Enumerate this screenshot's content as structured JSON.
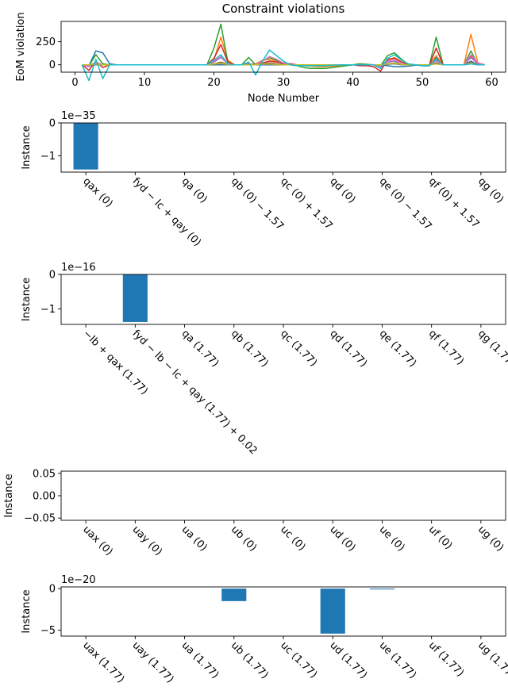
{
  "chart_data": [
    {
      "type": "line",
      "title": "Constraint violations",
      "xlabel": "Node Number",
      "ylabel": "EoM violation",
      "xlim": [
        -2,
        62
      ],
      "ylim": [
        -80,
        470
      ],
      "xticks": [
        0,
        10,
        20,
        30,
        40,
        50,
        60
      ],
      "xtick_labels": [
        "0",
        "10",
        "20",
        "30",
        "40",
        "50",
        "60"
      ],
      "yticks": [
        0,
        250
      ],
      "ytick_labels": [
        "0",
        "250"
      ],
      "x": [
        1,
        2,
        3,
        4,
        5,
        6,
        7,
        8,
        9,
        10,
        11,
        12,
        13,
        14,
        15,
        16,
        17,
        18,
        19,
        20,
        21,
        22,
        23,
        24,
        25,
        26,
        27,
        28,
        29,
        30,
        31,
        32,
        33,
        34,
        35,
        36,
        37,
        38,
        39,
        40,
        41,
        42,
        43,
        44,
        45,
        46,
        47,
        48,
        49,
        50,
        51,
        52,
        53,
        54,
        55,
        56,
        57,
        58,
        59
      ],
      "series": [
        {
          "color": "#1f77b4",
          "values": [
            0,
            -10,
            150,
            130,
            10,
            0,
            0,
            0,
            0,
            0,
            0,
            0,
            0,
            0,
            0,
            0,
            0,
            0,
            0,
            0,
            0,
            0,
            0,
            0,
            0,
            0,
            0,
            0,
            0,
            0,
            0,
            0,
            0,
            0,
            0,
            0,
            0,
            0,
            0,
            0,
            0,
            0,
            0,
            0,
            -10,
            -20,
            -20,
            -15,
            -5,
            0,
            0,
            80,
            0,
            0,
            0,
            0,
            40,
            0,
            0
          ]
        },
        {
          "color": "#ff7f0e",
          "values": [
            0,
            -10,
            10,
            0,
            0,
            0,
            0,
            0,
            0,
            0,
            0,
            0,
            0,
            0,
            0,
            0,
            0,
            0,
            0,
            50,
            300,
            50,
            0,
            0,
            0,
            10,
            50,
            60,
            40,
            20,
            5,
            0,
            -10,
            -15,
            -20,
            -20,
            -15,
            -10,
            -5,
            0,
            10,
            5,
            0,
            -10,
            50,
            80,
            30,
            5,
            0,
            -10,
            -10,
            100,
            0,
            0,
            0,
            0,
            330,
            20,
            0
          ]
        },
        {
          "color": "#2ca02c",
          "values": [
            0,
            -10,
            110,
            10,
            0,
            0,
            0,
            0,
            0,
            0,
            0,
            0,
            0,
            0,
            0,
            0,
            0,
            0,
            0,
            180,
            440,
            30,
            0,
            0,
            80,
            0,
            40,
            80,
            50,
            10,
            0,
            -10,
            -30,
            -40,
            -40,
            -40,
            -30,
            -20,
            -10,
            0,
            10,
            5,
            0,
            -10,
            100,
            130,
            60,
            0,
            0,
            -10,
            -10,
            300,
            0,
            0,
            0,
            0,
            150,
            0,
            0
          ]
        },
        {
          "color": "#d62728",
          "values": [
            0,
            -60,
            40,
            -30,
            0,
            0,
            0,
            0,
            0,
            0,
            0,
            0,
            0,
            0,
            0,
            0,
            0,
            0,
            0,
            70,
            220,
            30,
            0,
            0,
            10,
            0,
            20,
            40,
            30,
            20,
            10,
            0,
            0,
            0,
            0,
            0,
            0,
            0,
            0,
            0,
            -10,
            -10,
            -20,
            -70,
            60,
            70,
            30,
            5,
            0,
            -10,
            -10,
            180,
            0,
            0,
            0,
            0,
            100,
            20,
            0
          ]
        },
        {
          "color": "#9467bd",
          "values": [
            0,
            -20,
            20,
            0,
            0,
            0,
            0,
            0,
            0,
            0,
            0,
            0,
            0,
            0,
            0,
            0,
            0,
            0,
            0,
            30,
            80,
            10,
            0,
            0,
            5,
            0,
            10,
            20,
            10,
            5,
            0,
            0,
            0,
            0,
            0,
            0,
            0,
            0,
            0,
            0,
            0,
            0,
            0,
            -20,
            30,
            40,
            10,
            0,
            0,
            0,
            0,
            50,
            0,
            0,
            0,
            0,
            80,
            10,
            0
          ]
        },
        {
          "color": "#8c564b",
          "values": [
            0,
            -5,
            10,
            0,
            0,
            0,
            0,
            0,
            0,
            0,
            0,
            0,
            0,
            0,
            0,
            0,
            0,
            0,
            0,
            10,
            30,
            5,
            0,
            0,
            0,
            0,
            10,
            20,
            10,
            5,
            0,
            0,
            0,
            0,
            0,
            0,
            0,
            0,
            0,
            0,
            0,
            0,
            0,
            -10,
            10,
            20,
            5,
            0,
            0,
            0,
            0,
            20,
            0,
            0,
            0,
            0,
            30,
            0,
            0
          ]
        },
        {
          "color": "#e377c2",
          "values": [
            0,
            -10,
            30,
            0,
            0,
            0,
            0,
            0,
            0,
            0,
            0,
            0,
            0,
            0,
            0,
            0,
            0,
            0,
            0,
            40,
            90,
            10,
            0,
            0,
            0,
            0,
            40,
            90,
            60,
            20,
            0,
            0,
            0,
            0,
            0,
            0,
            0,
            0,
            0,
            0,
            0,
            0,
            0,
            -10,
            40,
            60,
            10,
            0,
            0,
            0,
            0,
            40,
            0,
            0,
            0,
            0,
            110,
            20,
            0
          ]
        },
        {
          "color": "#7f7f7f",
          "values": [
            0,
            0,
            0,
            0,
            0,
            0,
            0,
            0,
            0,
            0,
            0,
            0,
            0,
            0,
            0,
            0,
            0,
            0,
            0,
            5,
            10,
            0,
            0,
            0,
            0,
            0,
            5,
            5,
            0,
            0,
            0,
            0,
            0,
            0,
            0,
            0,
            0,
            0,
            0,
            0,
            0,
            0,
            0,
            0,
            5,
            10,
            0,
            0,
            0,
            0,
            0,
            10,
            0,
            0,
            0,
            0,
            10,
            0,
            0
          ]
        },
        {
          "color": "#bcbd22",
          "values": [
            0,
            0,
            10,
            0,
            0,
            0,
            0,
            0,
            0,
            0,
            0,
            0,
            0,
            0,
            0,
            0,
            0,
            0,
            0,
            10,
            20,
            5,
            0,
            0,
            0,
            0,
            10,
            10,
            5,
            0,
            0,
            0,
            0,
            0,
            0,
            0,
            0,
            0,
            0,
            0,
            0,
            0,
            0,
            0,
            10,
            20,
            5,
            0,
            0,
            0,
            0,
            10,
            0,
            0,
            0,
            0,
            20,
            0,
            0
          ]
        },
        {
          "color": "#17becf",
          "values": [
            0,
            -170,
            60,
            -150,
            0,
            0,
            0,
            0,
            0,
            0,
            0,
            0,
            0,
            0,
            0,
            0,
            0,
            0,
            0,
            50,
            110,
            10,
            0,
            0,
            30,
            -110,
            40,
            160,
            100,
            40,
            0,
            -10,
            -10,
            -10,
            -10,
            -10,
            -5,
            0,
            0,
            0,
            0,
            0,
            0,
            -40,
            70,
            110,
            50,
            10,
            0,
            -10,
            -10,
            60,
            0,
            0,
            0,
            0,
            10,
            0,
            0
          ]
        }
      ]
    },
    {
      "type": "bar",
      "ylabel": "Instance",
      "offset_text": "1e−35",
      "ylim": [
        -1.5,
        0
      ],
      "yticks": [
        -1,
        0
      ],
      "ytick_labels": [
        "−1",
        "0"
      ],
      "categories": [
        "qax (0)",
        "fyd − lc + qay (0)",
        "qa (0)",
        "qb (0) − 1.57",
        "qc (0) + 1.57",
        "qd (0)",
        "qe (0) − 1.57",
        "qf (0) + 1.57",
        "qg (0)"
      ],
      "values": [
        -1.42,
        0,
        0,
        0,
        0,
        0,
        0,
        0,
        0
      ]
    },
    {
      "type": "bar",
      "ylabel": "Instance",
      "offset_text": "1e−16",
      "ylim": [
        -1.45,
        0
      ],
      "yticks": [
        -1,
        0
      ],
      "ytick_labels": [
        "−1",
        "0"
      ],
      "categories": [
        "−lb + qax (1.77)",
        "fyd − lb − lc + qay (1.77) + 0.02",
        "qa (1.77)",
        "qb (1.77)",
        "qc (1.77)",
        "qd (1.77)",
        "qe (1.77)",
        "qf (1.77)",
        "qg (1.77)"
      ],
      "values": [
        0,
        -1.38,
        0,
        0,
        0,
        0,
        0,
        0,
        0
      ]
    },
    {
      "type": "bar",
      "ylabel": "Instance",
      "ylim": [
        -0.055,
        0.055
      ],
      "yticks": [
        -0.05,
        0,
        0.05
      ],
      "ytick_labels": [
        "−0.05",
        "0.00",
        "0.05"
      ],
      "categories": [
        "uax (0)",
        "uay (0)",
        "ua (0)",
        "ub (0)",
        "uc (0)",
        "ud (0)",
        "ue (0)",
        "uf (0)",
        "ug (0)"
      ],
      "values": [
        0,
        0,
        0,
        0,
        0,
        0,
        0,
        0,
        0
      ]
    },
    {
      "type": "bar",
      "ylabel": "Instance",
      "offset_text": "1e−20",
      "ylim": [
        -5.7,
        0.2
      ],
      "yticks": [
        -5,
        0
      ],
      "ytick_labels": [
        "−5",
        "0"
      ],
      "categories": [
        "uax (1.77)",
        "uay (1.77)",
        "ua (1.77)",
        "ub (1.77)",
        "uc (1.77)",
        "ud (1.77)",
        "ue (1.77)",
        "uf (1.77)",
        "ug (1.77)"
      ],
      "values": [
        0,
        0,
        0,
        -1.5,
        0,
        -5.4,
        -0.1,
        0,
        0
      ]
    }
  ]
}
